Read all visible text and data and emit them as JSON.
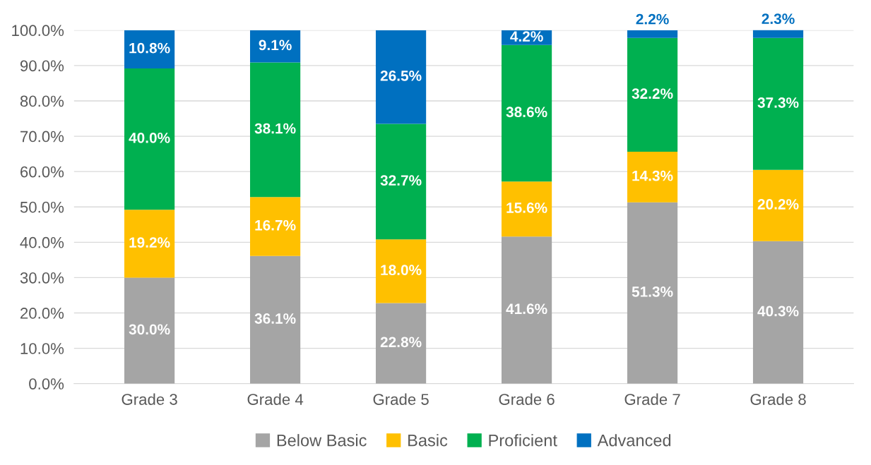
{
  "chart_data": {
    "type": "bar",
    "stacked": true,
    "categories": [
      "Grade 3",
      "Grade 4",
      "Grade 5",
      "Grade 6",
      "Grade 7",
      "Grade 8"
    ],
    "series": [
      {
        "name": "Below Basic",
        "color": "#a5a5a5",
        "values": [
          30.0,
          36.1,
          22.8,
          41.6,
          51.3,
          40.3
        ],
        "value_labels": [
          "30.0%",
          "36.1%",
          "22.8%",
          "41.6%",
          "51.3%",
          "40.3%"
        ]
      },
      {
        "name": "Basic",
        "color": "#ffc000",
        "values": [
          19.2,
          16.7,
          18.0,
          15.6,
          14.3,
          20.2
        ],
        "value_labels": [
          "19.2%",
          "16.7%",
          "18.0%",
          "15.6%",
          "14.3%",
          "20.2%"
        ]
      },
      {
        "name": "Proficient",
        "color": "#00b050",
        "values": [
          40.0,
          38.1,
          32.7,
          38.6,
          32.2,
          37.3
        ],
        "value_labels": [
          "40.0%",
          "38.1%",
          "32.7%",
          "38.6%",
          "32.2%",
          "37.3%"
        ]
      },
      {
        "name": "Advanced",
        "color": "#0070c0",
        "values": [
          10.8,
          9.1,
          26.5,
          4.2,
          2.2,
          2.3
        ],
        "value_labels": [
          "10.8%",
          "9.1%",
          "26.5%",
          "4.2%",
          "2.2%",
          "2.3%"
        ]
      }
    ],
    "ylim": [
      0,
      100
    ],
    "yticks": [
      {
        "value": 0,
        "label": "0.0%"
      },
      {
        "value": 10,
        "label": "10.0%"
      },
      {
        "value": 20,
        "label": "20.0%"
      },
      {
        "value": 30,
        "label": "30.0%"
      },
      {
        "value": 40,
        "label": "40.0%"
      },
      {
        "value": 50,
        "label": "50.0%"
      },
      {
        "value": 60,
        "label": "60.0%"
      },
      {
        "value": 70,
        "label": "70.0%"
      },
      {
        "value": 80,
        "label": "80.0%"
      },
      {
        "value": 90,
        "label": "90.0%"
      },
      {
        "value": 100,
        "label": "100.0%"
      }
    ],
    "grid": "y",
    "legend": "bottom"
  }
}
